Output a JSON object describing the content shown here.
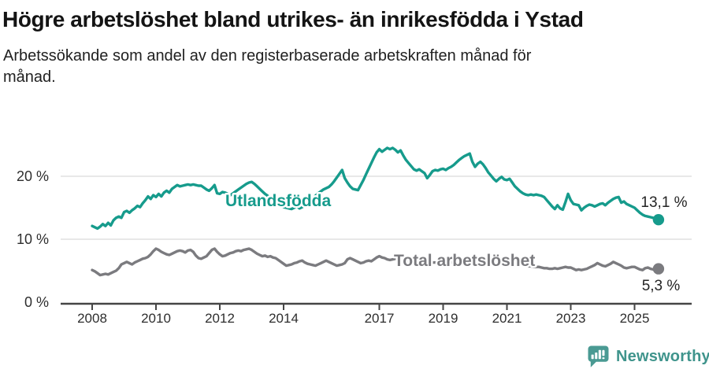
{
  "chart_data": {
    "type": "line",
    "title": "Högre arbetslöshet bland utrikes- än inrikesfödda i Ystad",
    "subtitle": "Arbetssökande som andel av den registerbaserade arbetskraften månad för månad.",
    "grid": "horizontal",
    "legend_position": "inline-labels",
    "x_axis": {
      "start": "2008-01",
      "end": "2025-10",
      "interval": "month",
      "ticks": [
        2008,
        2010,
        2012,
        2014,
        2017,
        2019,
        2021,
        2023,
        2025
      ]
    },
    "y_axis": {
      "unit": "%",
      "range": [
        0,
        25
      ],
      "ticks": [
        {
          "value": 0,
          "label": "0 %"
        },
        {
          "value": 10,
          "label": "10 %"
        },
        {
          "value": 20,
          "label": "20 %"
        }
      ]
    },
    "series": [
      {
        "name": "Utlandsfödda",
        "color": "#169b8c",
        "end_label": "13,1 %",
        "end_value": 13.1,
        "values": [
          12.1,
          11.9,
          11.7,
          12.0,
          12.4,
          12.1,
          12.6,
          12.2,
          13.0,
          13.4,
          13.6,
          13.4,
          14.3,
          14.5,
          14.2,
          14.6,
          14.9,
          15.3,
          15.1,
          15.7,
          16.2,
          16.8,
          16.4,
          17.0,
          16.7,
          17.2,
          16.8,
          17.4,
          17.7,
          17.4,
          18.0,
          18.3,
          18.6,
          18.4,
          18.5,
          18.6,
          18.7,
          18.6,
          18.7,
          18.6,
          18.5,
          18.5,
          18.2,
          17.9,
          17.7,
          18.1,
          18.6,
          17.3,
          17.2,
          17.5,
          17.4,
          17.2,
          17.0,
          17.3,
          17.6,
          17.9,
          18.2,
          18.5,
          18.8,
          19.0,
          19.1,
          18.8,
          18.4,
          18.0,
          17.6,
          17.2,
          16.9,
          16.5,
          16.1,
          15.8,
          15.5,
          15.3,
          15.1,
          15.0,
          14.9,
          14.8,
          15.0,
          15.2,
          14.9,
          15.1,
          15.4,
          15.7,
          16.1,
          16.5,
          16.9,
          17.3,
          17.6,
          17.9,
          18.1,
          18.3,
          18.7,
          19.2,
          19.8,
          20.4,
          21.0,
          19.7,
          19.0,
          18.4,
          18.0,
          17.9,
          17.8,
          18.6,
          19.4,
          20.3,
          21.2,
          22.1,
          23.0,
          23.8,
          24.3,
          23.9,
          24.2,
          24.5,
          24.3,
          24.5,
          24.2,
          23.8,
          24.1,
          23.3,
          22.6,
          22.1,
          21.6,
          21.1,
          20.9,
          21.1,
          20.8,
          20.5,
          19.7,
          20.2,
          20.8,
          21.0,
          20.9,
          21.1,
          21.2,
          21.0,
          21.3,
          21.5,
          21.8,
          22.2,
          22.6,
          22.9,
          23.2,
          23.4,
          23.6,
          22.3,
          21.5,
          22.0,
          22.3,
          21.9,
          21.3,
          20.6,
          20.1,
          19.6,
          19.2,
          19.6,
          19.9,
          19.5,
          19.4,
          19.6,
          19.0,
          18.4,
          18.0,
          17.6,
          17.3,
          17.1,
          17.0,
          17.1,
          17.0,
          17.1,
          17.0,
          16.9,
          16.7,
          16.2,
          15.7,
          15.2,
          14.8,
          15.4,
          14.9,
          14.7,
          15.9,
          17.2,
          16.2,
          15.6,
          15.5,
          15.4,
          14.6,
          15.0,
          15.3,
          15.5,
          15.4,
          15.2,
          15.4,
          15.6,
          15.7,
          15.4,
          15.8,
          16.1,
          16.4,
          16.6,
          16.7,
          15.8,
          16.0,
          15.6,
          15.4,
          15.2,
          15.0,
          14.6,
          14.2,
          13.9,
          13.7,
          13.6,
          13.5,
          13.4,
          13.2,
          13.1
        ]
      },
      {
        "name": "Total arbetslöshet",
        "color": "#7b7b7f",
        "end_label": "5,3 %",
        "end_value": 5.3,
        "values": [
          5.1,
          4.9,
          4.6,
          4.3,
          4.4,
          4.5,
          4.4,
          4.6,
          4.8,
          5.0,
          5.4,
          6.0,
          6.2,
          6.4,
          6.2,
          6.0,
          6.3,
          6.5,
          6.7,
          6.9,
          7.0,
          7.2,
          7.6,
          8.1,
          8.5,
          8.3,
          8.0,
          7.8,
          7.6,
          7.5,
          7.7,
          7.9,
          8.1,
          8.2,
          8.1,
          7.9,
          8.2,
          8.3,
          8.0,
          7.4,
          7.0,
          6.9,
          7.1,
          7.3,
          7.8,
          8.3,
          8.5,
          8.0,
          7.6,
          7.3,
          7.4,
          7.6,
          7.8,
          7.9,
          8.1,
          8.2,
          8.1,
          8.3,
          8.4,
          8.5,
          8.3,
          8.0,
          7.7,
          7.5,
          7.3,
          7.4,
          7.2,
          7.3,
          7.1,
          7.0,
          6.7,
          6.4,
          6.1,
          5.8,
          5.9,
          6.0,
          6.2,
          6.3,
          6.5,
          6.6,
          6.3,
          6.1,
          6.0,
          5.9,
          5.8,
          6.0,
          6.2,
          6.4,
          6.6,
          6.4,
          6.2,
          6.0,
          5.8,
          5.9,
          6.0,
          6.2,
          6.8,
          7.0,
          6.8,
          6.6,
          6.4,
          6.2,
          6.3,
          6.5,
          6.6,
          6.5,
          6.8,
          7.1,
          7.3,
          7.1,
          7.0,
          6.8,
          6.7,
          6.8,
          6.9,
          7.0,
          6.8,
          6.7,
          6.6,
          6.6,
          6.6,
          6.5,
          6.5,
          6.4,
          6.4,
          6.3,
          6.3,
          6.4,
          6.3,
          6.3,
          6.2,
          6.3,
          6.3,
          6.2,
          6.2,
          6.3,
          6.3,
          6.4,
          6.4,
          6.5,
          6.5,
          6.4,
          6.5,
          6.6,
          6.6,
          6.7,
          6.9,
          7.0,
          7.0,
          6.9,
          6.8,
          6.8,
          6.7,
          6.6,
          6.5,
          6.4,
          6.4,
          6.3,
          6.2,
          6.1,
          6.0,
          5.9,
          5.9,
          5.8,
          5.7,
          5.7,
          5.6,
          5.6,
          5.6,
          5.5,
          5.4,
          5.4,
          5.3,
          5.3,
          5.4,
          5.3,
          5.4,
          5.5,
          5.6,
          5.5,
          5.5,
          5.3,
          5.1,
          5.2,
          5.1,
          5.2,
          5.3,
          5.5,
          5.7,
          5.9,
          6.2,
          6.0,
          5.8,
          5.7,
          5.9,
          6.1,
          6.4,
          6.2,
          6.0,
          5.8,
          5.5,
          5.4,
          5.5,
          5.6,
          5.6,
          5.4,
          5.2,
          5.1,
          5.4,
          5.5,
          5.3,
          5.2,
          5.4,
          5.3
        ]
      }
    ]
  },
  "branding": {
    "logo_text": "Newsworthy",
    "logo_color": "#4a9a93",
    "logo_icon": "speech-bubble-bar-chart-icon"
  }
}
